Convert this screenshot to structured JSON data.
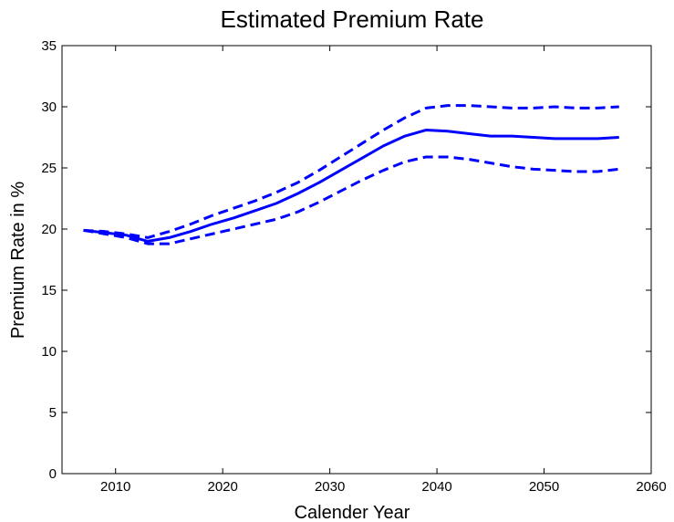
{
  "chart_data": {
    "type": "line",
    "title": "Estimated Premium Rate",
    "xlabel": "Calender Year",
    "ylabel": "Premium Rate in %",
    "xlim": [
      2005,
      2060
    ],
    "ylim": [
      0,
      35
    ],
    "xticks": [
      "2010",
      "2020",
      "2030",
      "2040",
      "2050",
      "2060"
    ],
    "yticks": [
      "0",
      "5",
      "10",
      "15",
      "20",
      "25",
      "30",
      "35"
    ],
    "grid": false,
    "legend": "none",
    "series_color": "#0000ff",
    "series": [
      {
        "style": "dashed",
        "x": [
          2007,
          2009,
          2011,
          2013,
          2015,
          2017,
          2019,
          2021,
          2023,
          2025,
          2027,
          2029,
          2031,
          2033,
          2035,
          2037,
          2039,
          2041,
          2043,
          2045,
          2047,
          2049,
          2051,
          2053,
          2055,
          2057
        ],
        "y": [
          19.9,
          19.8,
          19.6,
          19.3,
          19.8,
          20.4,
          21.1,
          21.7,
          22.3,
          23.0,
          23.8,
          24.8,
          25.9,
          27.0,
          28.1,
          29.1,
          29.9,
          30.1,
          30.1,
          30.0,
          29.9,
          29.9,
          30.0,
          29.9,
          29.9,
          30.0
        ]
      },
      {
        "style": "solid",
        "x": [
          2007,
          2009,
          2011,
          2013,
          2015,
          2017,
          2019,
          2021,
          2023,
          2025,
          2027,
          2029,
          2031,
          2033,
          2035,
          2037,
          2039,
          2041,
          2043,
          2045,
          2047,
          2049,
          2051,
          2053,
          2055,
          2057
        ],
        "y": [
          19.9,
          19.7,
          19.5,
          19.0,
          19.3,
          19.8,
          20.4,
          20.9,
          21.5,
          22.1,
          22.9,
          23.8,
          24.8,
          25.8,
          26.8,
          27.6,
          28.1,
          28.0,
          27.8,
          27.6,
          27.6,
          27.5,
          27.4,
          27.4,
          27.4,
          27.5
        ]
      },
      {
        "style": "dashed",
        "x": [
          2007,
          2009,
          2011,
          2013,
          2015,
          2017,
          2019,
          2021,
          2023,
          2025,
          2027,
          2029,
          2031,
          2033,
          2035,
          2037,
          2039,
          2041,
          2043,
          2045,
          2047,
          2049,
          2051,
          2053,
          2055,
          2057
        ],
        "y": [
          19.9,
          19.6,
          19.3,
          18.8,
          18.8,
          19.2,
          19.6,
          20.0,
          20.4,
          20.8,
          21.4,
          22.2,
          23.1,
          24.0,
          24.8,
          25.5,
          25.9,
          25.9,
          25.7,
          25.4,
          25.1,
          24.9,
          24.8,
          24.7,
          24.7,
          24.9
        ]
      }
    ]
  }
}
